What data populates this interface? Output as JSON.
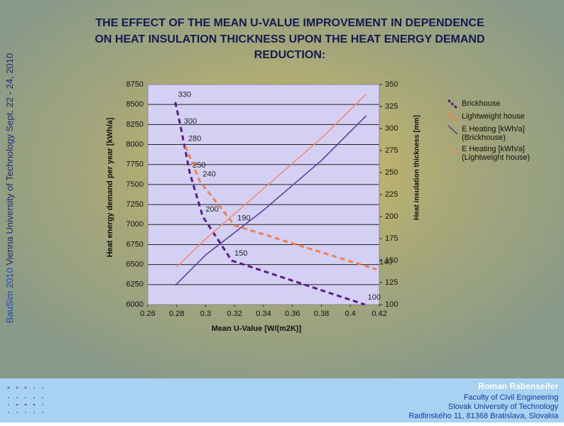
{
  "slide": {
    "side_event": "BauSim 2010",
    "side_text": " Vienna University of Technology Sept. 22 - 24, 2010",
    "author": "Roman Rabenseifer",
    "affiliation": [
      "Faculty of Civil Engineering",
      "Slovak University of Technology",
      "Radlinského 11, 81368 Bratislava, Slovakia"
    ]
  },
  "chart_data": {
    "type": "line",
    "title": [
      "THE EFFECT OF THE MEAN U-VALUE IMPROVEMENT IN DEPENDENCE",
      "ON HEAT INSULATION THICKNESS UPON THE HEAT ENERGY DEMAND",
      "REDUCTION:"
    ],
    "x_label": "Mean U-Value [W/(m2K)]",
    "y_label": "Heat energy demand per year [kWh/a]",
    "y2_label": "Heat insulation thickness [mm]",
    "xlim": [
      0.26,
      0.42
    ],
    "xticks": [
      0.26,
      0.28,
      0.3,
      0.32,
      0.34,
      0.36,
      0.38,
      0.4,
      0.42
    ],
    "ylim": [
      6000,
      8750
    ],
    "yticks": [
      6000,
      6250,
      6500,
      6750,
      7000,
      7250,
      7500,
      7750,
      8000,
      8250,
      8500,
      8750
    ],
    "y2lim": [
      100,
      350
    ],
    "y2ticks": [
      100,
      125,
      150,
      175,
      200,
      225,
      250,
      275,
      300,
      325,
      350
    ],
    "grid": true,
    "legend": "right",
    "series": [
      {
        "name": "Brickhouse",
        "color": "#5a1a8a",
        "dashed": true,
        "axis": "y2",
        "data_labels": true,
        "x": [
          0.279,
          0.283,
          0.289,
          0.298,
          0.318,
          0.41
        ],
        "values": [
          330,
          300,
          250,
          200,
          150,
          100
        ]
      },
      {
        "name": "Lightweight house",
        "color": "#f08050",
        "dashed": true,
        "axis": "y2",
        "data_labels": true,
        "x": [
          0.286,
          0.296,
          0.32,
          0.418
        ],
        "values": [
          280,
          240,
          190,
          140
        ]
      },
      {
        "name": "E Heating [kWh/a] (Brickhouse)",
        "color": "#5a3a9a",
        "dashed": false,
        "axis": "y",
        "x": [
          0.279,
          0.3,
          0.34,
          0.38,
          0.411
        ],
        "values": [
          6240,
          6620,
          7180,
          7800,
          8360
        ]
      },
      {
        "name": "E Heating [kWh/a] (Lightweight house)",
        "color": "#f08a70",
        "dashed": false,
        "axis": "y",
        "x": [
          0.28,
          0.3,
          0.34,
          0.38,
          0.411
        ],
        "values": [
          6470,
          6820,
          7450,
          8080,
          8630
        ]
      }
    ]
  }
}
